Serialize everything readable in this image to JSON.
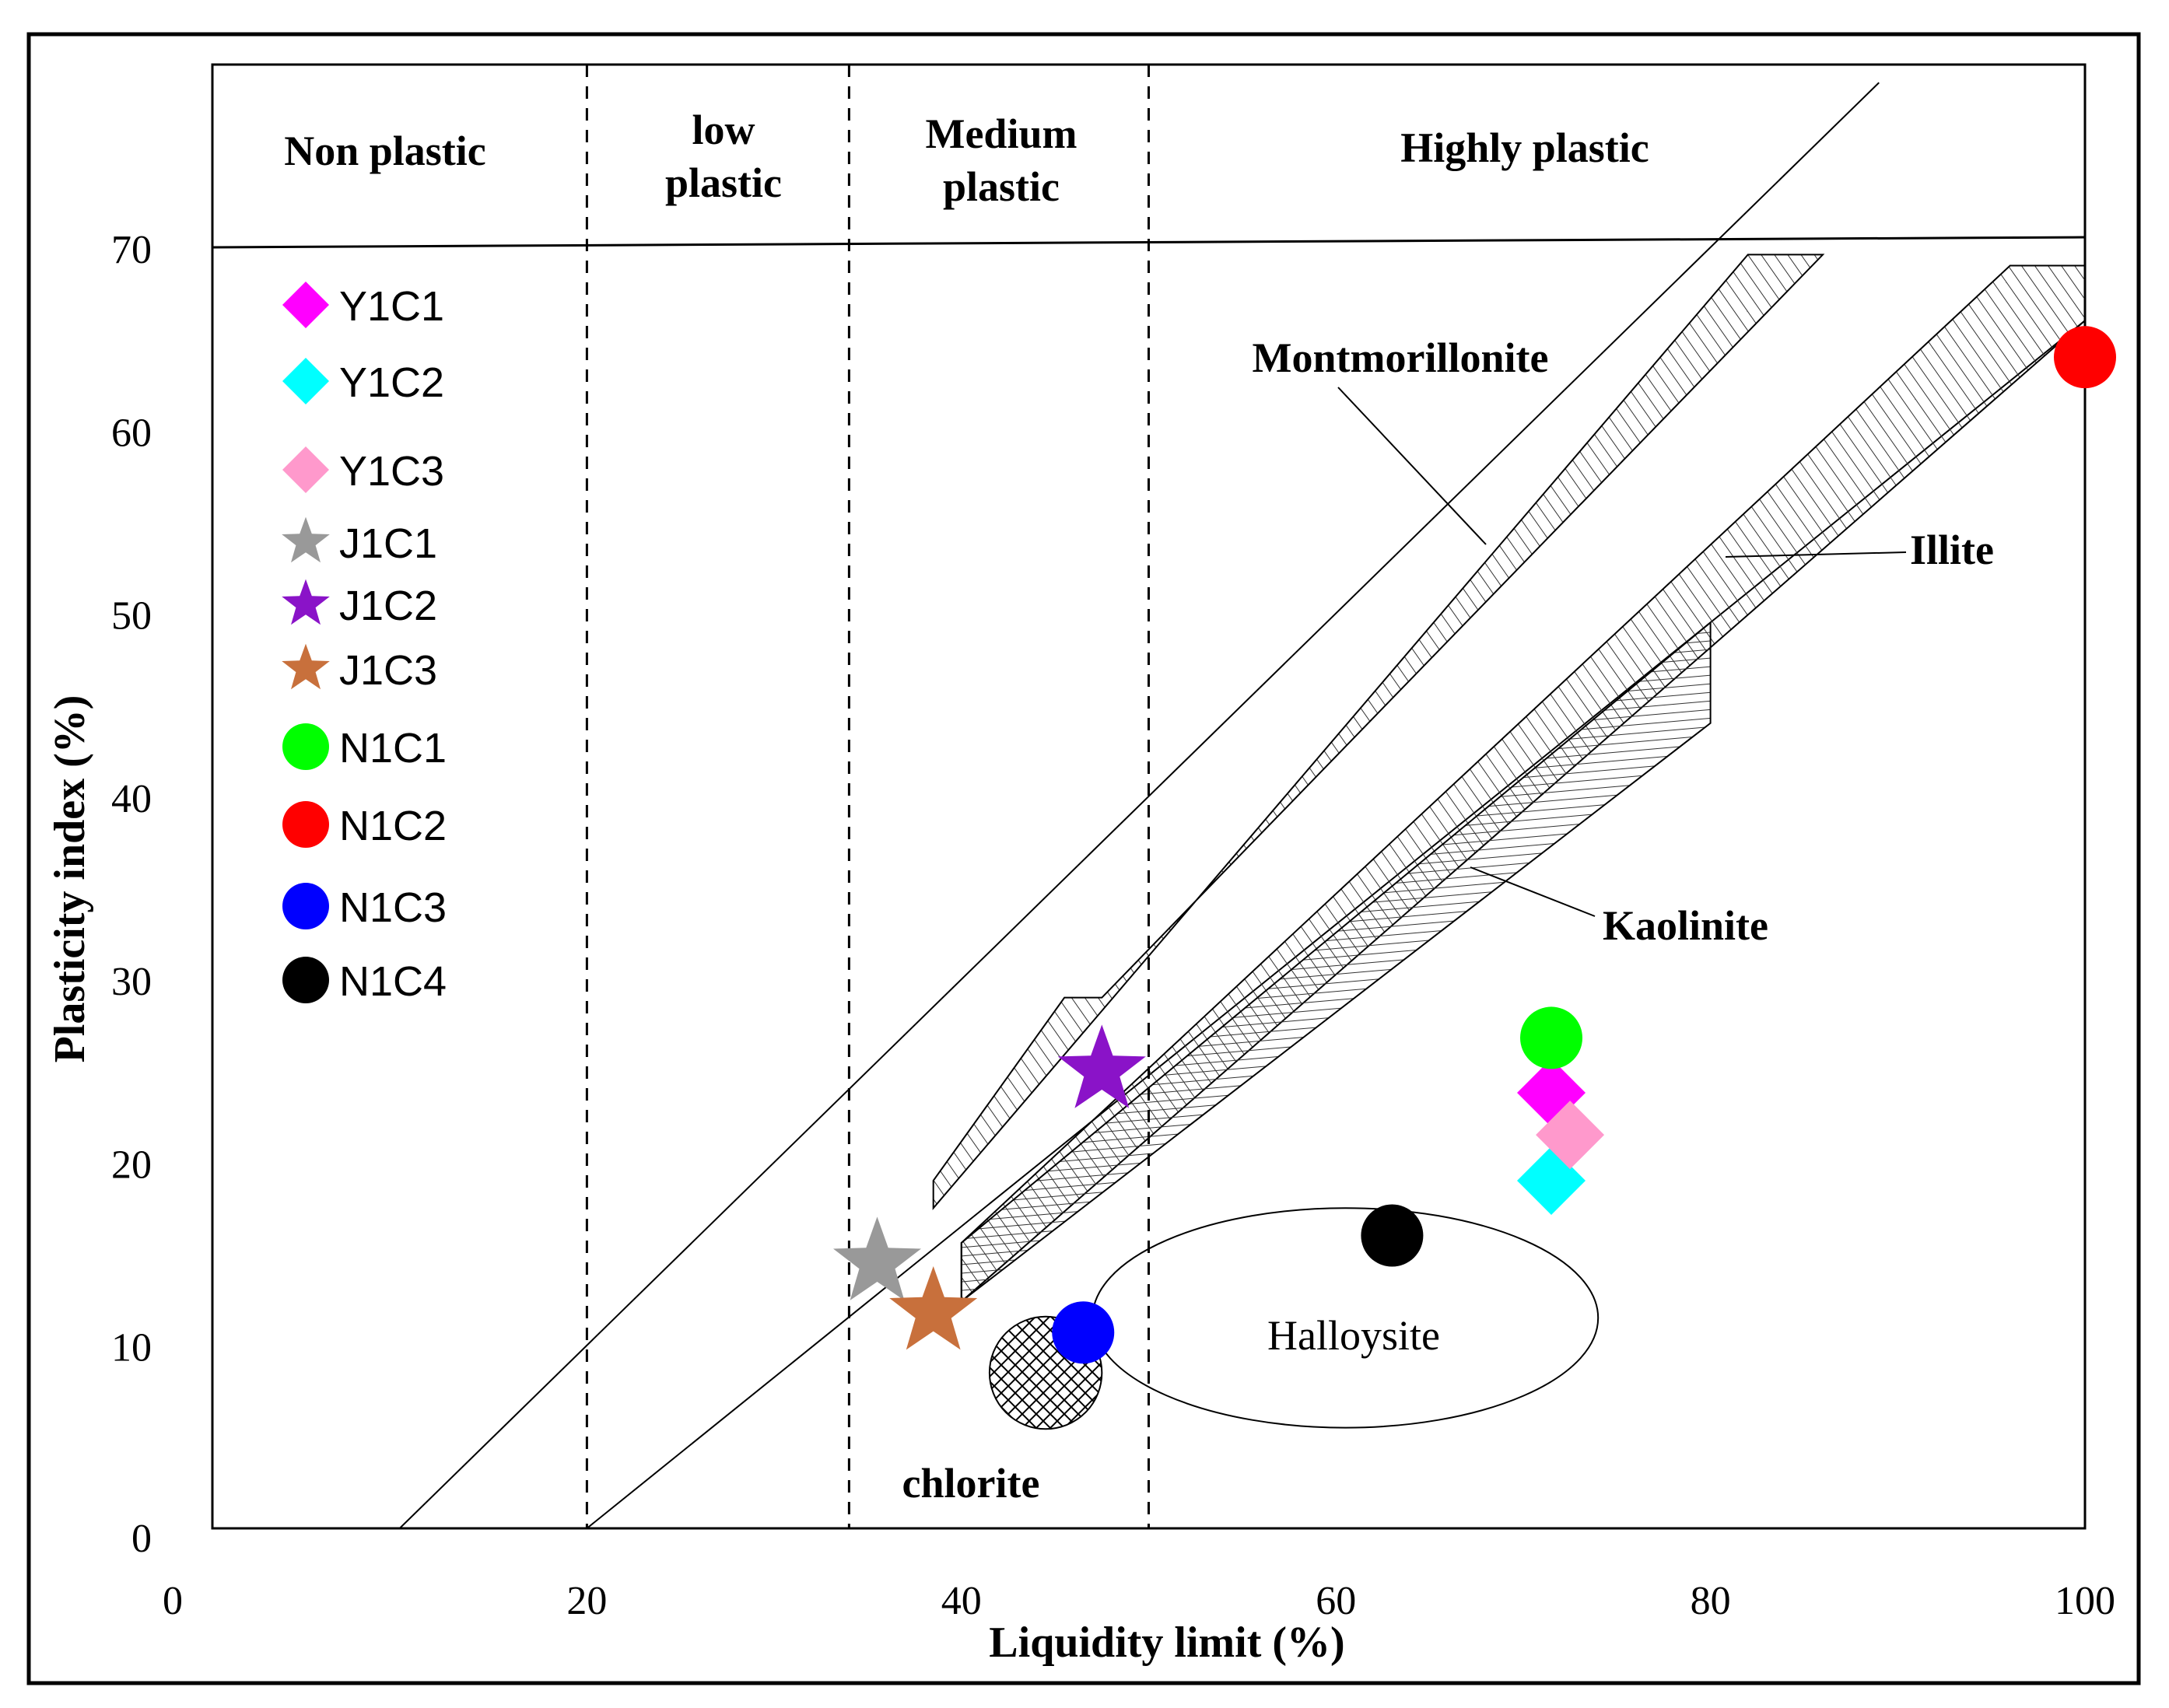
{
  "chart_data": {
    "type": "scatter",
    "xlabel": "Liquidity limit (%)",
    "ylabel": "Plasticity index (%)",
    "xlim": [
      0,
      100
    ],
    "ylim": [
      0,
      70
    ],
    "x_ticks": [
      "0",
      "20",
      "40",
      "60",
      "80",
      "100"
    ],
    "y_ticks": [
      "0",
      "10",
      "20",
      "30",
      "40",
      "50",
      "60",
      "70"
    ],
    "plasticity_zones": [
      {
        "label": "Non plastic",
        "x_from": 0,
        "x_to": 20
      },
      {
        "label": "low plastic",
        "x_from": 20,
        "x_to": 34
      },
      {
        "label": "Medium plastic",
        "x_from": 34,
        "x_to": 50
      },
      {
        "label": "Highly plastic",
        "x_from": 50,
        "x_to": 100
      }
    ],
    "zone_boundaries_x": [
      20,
      34,
      50
    ],
    "reference_lines": [
      {
        "from": [
          10,
          0
        ],
        "to": [
          89,
          79
        ]
      },
      {
        "from": [
          20,
          0
        ],
        "to": [
          100,
          66
        ]
      }
    ],
    "mineral_zones": [
      {
        "label": "Montmorillonite",
        "polygon": [
          [
            38.5,
            17.5
          ],
          [
            38.5,
            19
          ],
          [
            45.5,
            29
          ],
          [
            47.5,
            29
          ],
          [
            86,
            69.6
          ],
          [
            82,
            69.6
          ]
        ]
      },
      {
        "label": "Illite",
        "polygon": [
          [
            40,
            15.6
          ],
          [
            96,
            69
          ],
          [
            100,
            69
          ],
          [
            100,
            66
          ],
          [
            40,
            12.4
          ]
        ]
      },
      {
        "label": "Kaolinite",
        "polygon": [
          [
            40,
            15.6
          ],
          [
            80,
            49.5
          ],
          [
            80,
            44
          ],
          [
            40,
            12.4
          ]
        ]
      },
      {
        "label": "chlorite",
        "center": [
          44.5,
          8.5
        ],
        "radius": 3
      },
      {
        "label": "Halloysite",
        "center": [
          60.5,
          11.5
        ],
        "rx": 13.5,
        "ry": 6
      }
    ],
    "series": [
      {
        "name": "Y1C1",
        "marker": "diamond",
        "color": "#ff00ff",
        "x": 71.5,
        "y": 23.8
      },
      {
        "name": "Y1C2",
        "marker": "diamond",
        "color": "#00ffff",
        "x": 71.5,
        "y": 19
      },
      {
        "name": "Y1C3",
        "marker": "diamond",
        "color": "#ff99cc",
        "x": 72.5,
        "y": 21.5
      },
      {
        "name": "J1C1",
        "marker": "star",
        "color": "#999999",
        "x": 35.5,
        "y": 14.5
      },
      {
        "name": "J1C2",
        "marker": "star",
        "color": "#8a13c8",
        "x": 47.5,
        "y": 25
      },
      {
        "name": "J1C3",
        "marker": "star",
        "color": "#c8703c",
        "x": 38.5,
        "y": 11.8
      },
      {
        "name": "N1C1",
        "marker": "circle",
        "color": "#00ff00",
        "x": 71.5,
        "y": 26.8
      },
      {
        "name": "N1C2",
        "marker": "circle",
        "color": "#ff0000",
        "x": 100,
        "y": 64
      },
      {
        "name": "N1C3",
        "marker": "circle",
        "color": "#0000ff",
        "x": 46.5,
        "y": 10.7
      },
      {
        "name": "N1C4",
        "marker": "circle",
        "color": "#000000",
        "x": 63,
        "y": 16
      }
    ]
  }
}
